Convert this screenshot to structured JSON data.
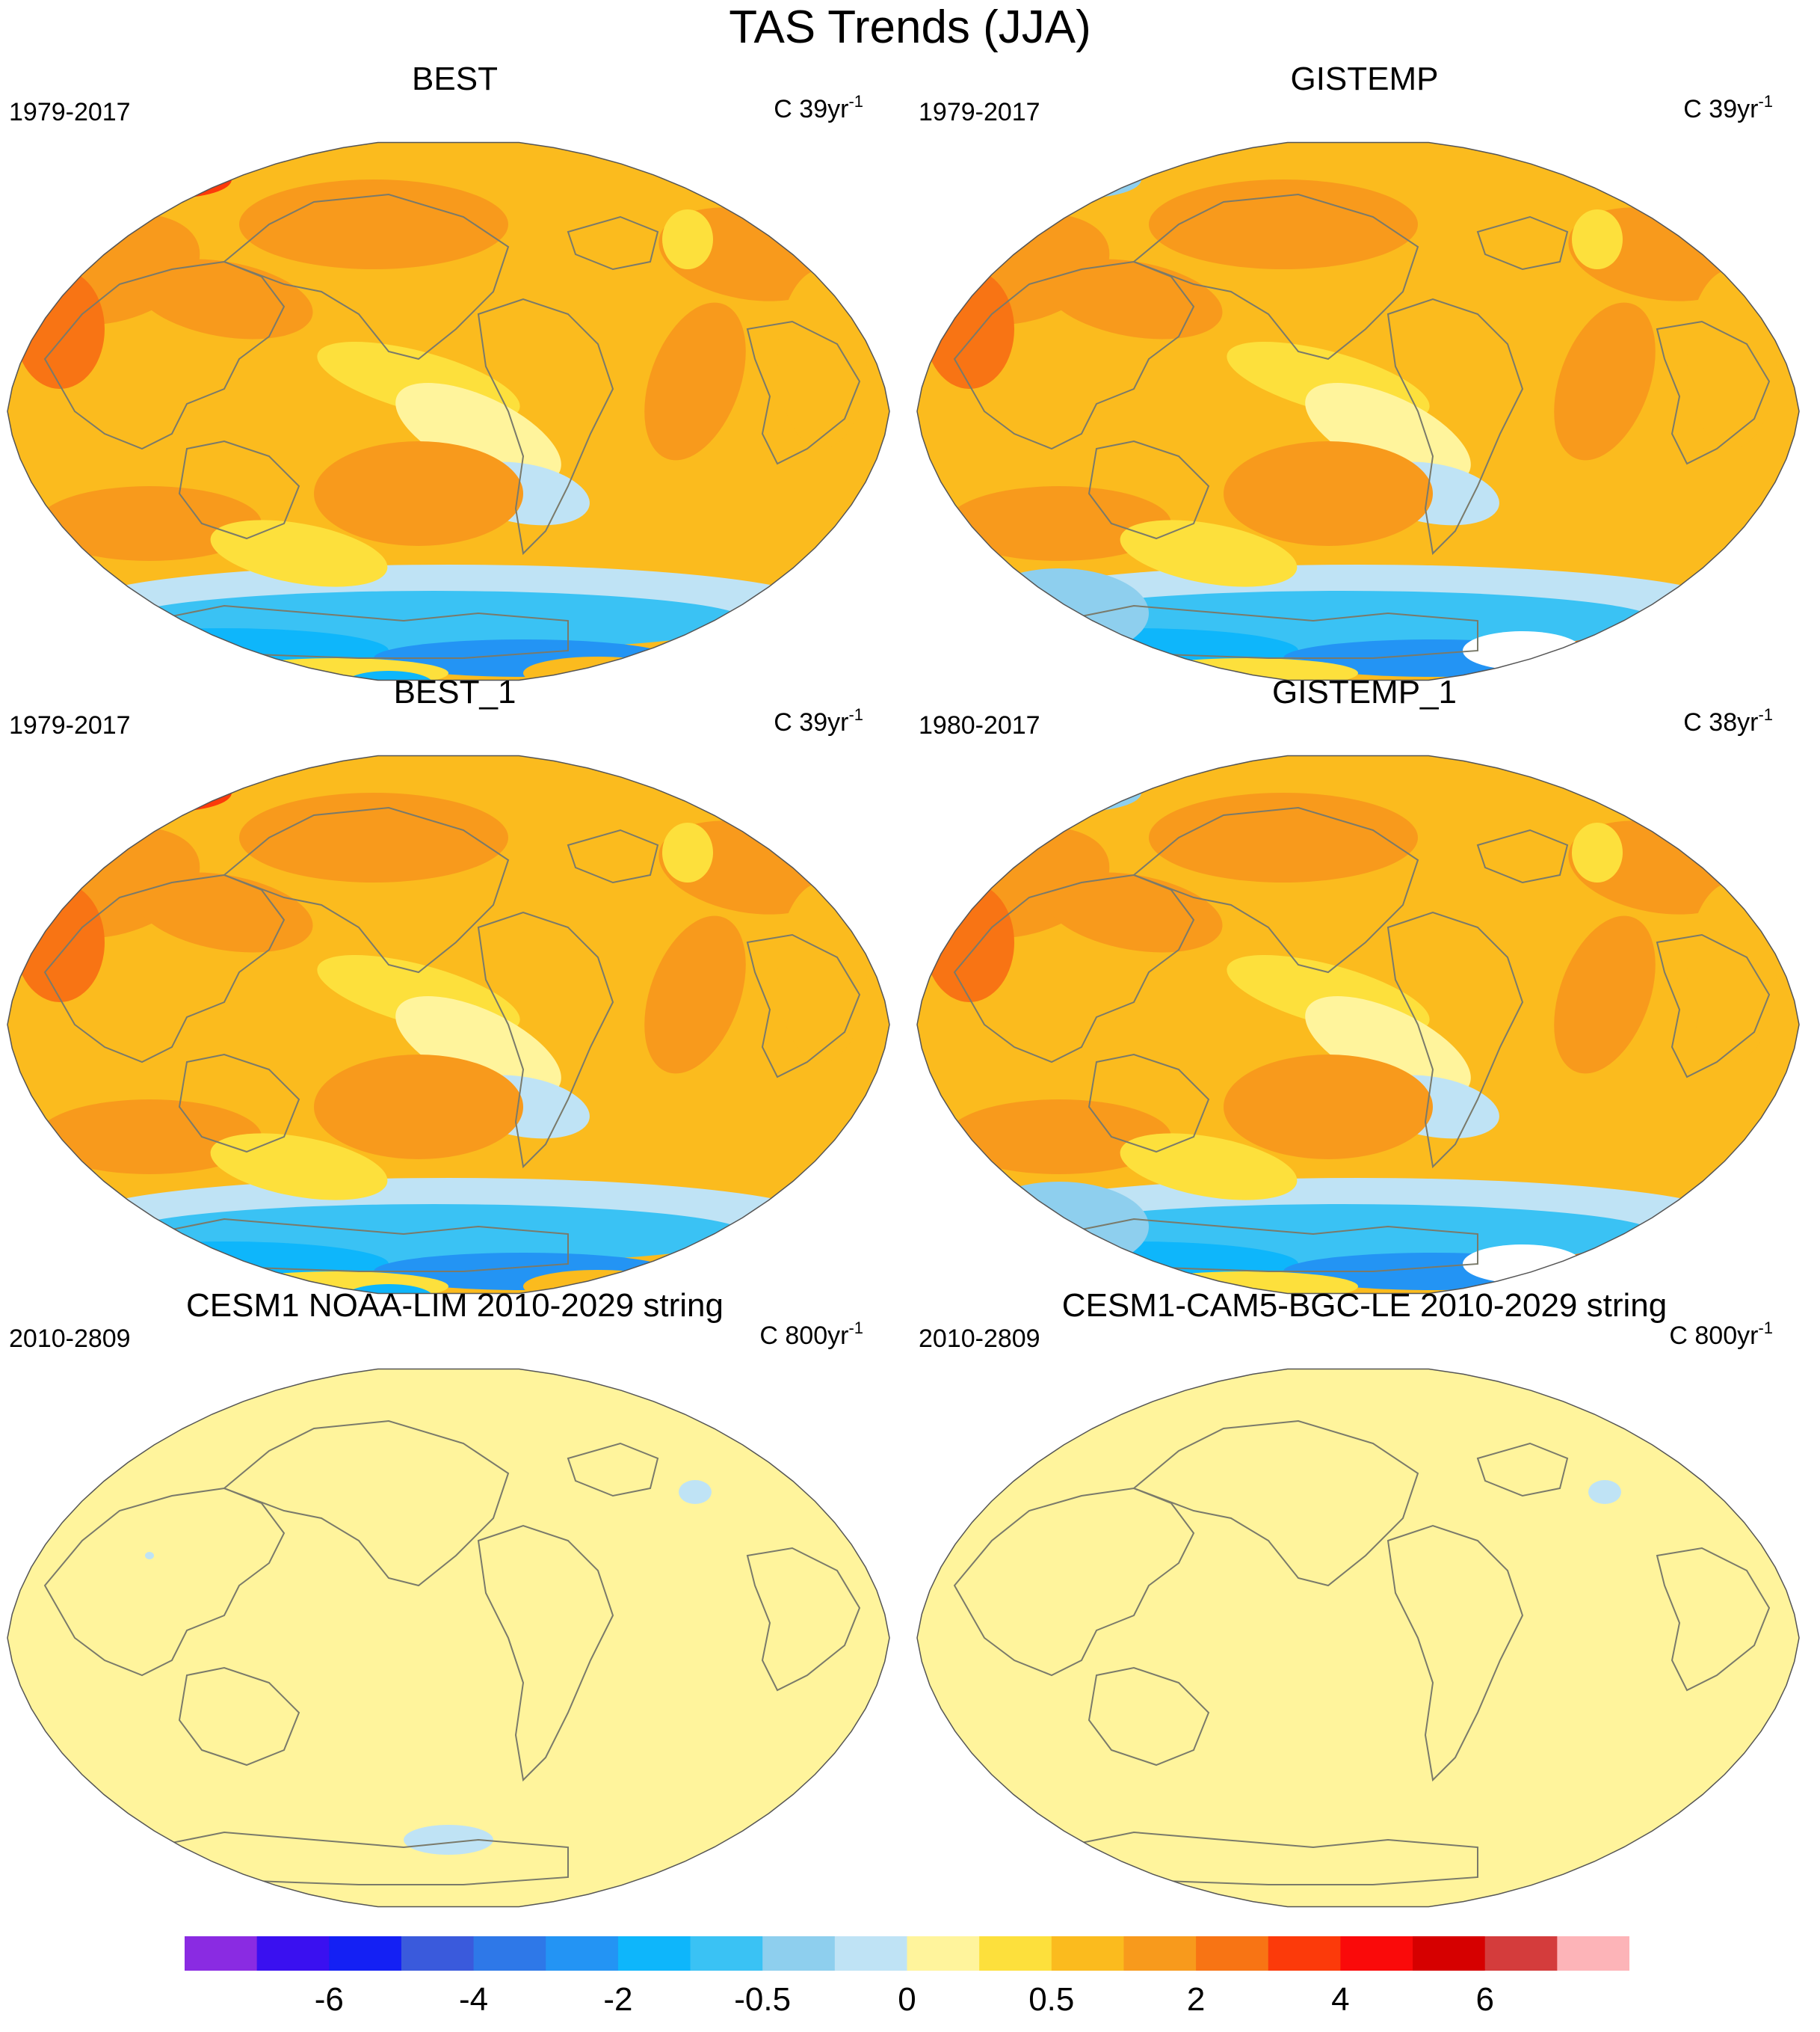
{
  "title": "TAS Trends (JJA)",
  "panels": [
    {
      "title": "BEST",
      "left": "1979-2017",
      "right_text": "C 39yr",
      "right_sup": "-1",
      "style": "obs_best"
    },
    {
      "title": "GISTEMP",
      "left": "1979-2017",
      "right_text": "C 39yr",
      "right_sup": "-1",
      "style": "obs_gis"
    },
    {
      "title": "BEST_1",
      "left": "1979-2017",
      "right_text": "C 39yr",
      "right_sup": "-1",
      "style": "obs_best"
    },
    {
      "title": "GISTEMP_1",
      "left": "1980-2017",
      "right_text": "C 38yr",
      "right_sup": "-1",
      "style": "obs_gis"
    },
    {
      "title": "CESM1 NOAA-LIM 2010-2029 string",
      "left": "2010-2809",
      "right_text": "C 800yr",
      "right_sup": "-1",
      "style": "flat_a"
    },
    {
      "title": "CESM1-CAM5-BGC-LE 2010-2029 string",
      "left": "2010-2809",
      "right_text": "C 800yr",
      "right_sup": "-1",
      "style": "flat_b"
    }
  ],
  "colorbar": {
    "colors": [
      "#8a2be2",
      "#3a10f0",
      "#1420f4",
      "#3a5adc",
      "#2e78e8",
      "#2394f4",
      "#0eb6fb",
      "#3ac2f4",
      "#8ecfee",
      "#bfe3f5",
      "#fff49c",
      "#fde03c",
      "#fbbb1e",
      "#f89a1c",
      "#f87414",
      "#fc3a0a",
      "#fa0a0a",
      "#d60000",
      "#d43c3c",
      "#fdb4b8"
    ],
    "labels": [
      "-6",
      "-4",
      "-2",
      "-0.5",
      "0",
      "0.5",
      "2",
      "4",
      "6"
    ],
    "label_boundaries": [
      2,
      4,
      6,
      8,
      10,
      12,
      14,
      16,
      18
    ]
  }
}
